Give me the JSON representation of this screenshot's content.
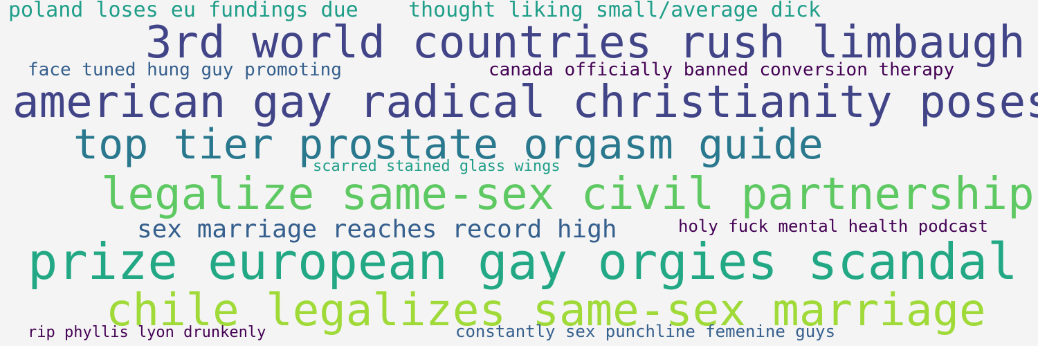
{
  "colors": {
    "background": "#f4f4f4",
    "viridis_teal": "#1f9e89",
    "viridis_indigo": "#414487",
    "viridis_blue": "#2a788e",
    "viridis_slate": "#355f8d",
    "viridis_purple": "#440154",
    "viridis_green": "#5ec962",
    "viridis_lime": "#a0da39",
    "viridis_sea": "#22a884"
  },
  "phrases": [
    {
      "text": "poland loses eu fundings due",
      "color": "#1f9e89"
    },
    {
      "text": "thought liking small/average dick",
      "color": "#1f9e89"
    },
    {
      "text": "3rd world countries rush limbaugh",
      "color": "#414487"
    },
    {
      "text": "face tuned hung guy promoting",
      "color": "#355f8d"
    },
    {
      "text": "canada officially banned conversion therapy",
      "color": "#440154"
    },
    {
      "text": "american gay radical christianity poses",
      "color": "#414487"
    },
    {
      "text": "top tier prostate orgasm guide",
      "color": "#2a788e"
    },
    {
      "text": "scarred stained glass wings",
      "color": "#1f9e89"
    },
    {
      "text": "legalize same-sex civil partnerships",
      "color": "#5ec962"
    },
    {
      "text": "sex marriage reaches record high",
      "color": "#355f8d"
    },
    {
      "text": "holy fuck mental health podcast",
      "color": "#440154"
    },
    {
      "text": "prize european gay orgies scandal",
      "color": "#22a884"
    },
    {
      "text": "chile legalizes same-sex marriage",
      "color": "#a0da39"
    },
    {
      "text": "rip phyllis lyon drunkenly",
      "color": "#440154"
    },
    {
      "text": "constantly sex punchline femenine guys",
      "color": "#355f8d"
    }
  ]
}
